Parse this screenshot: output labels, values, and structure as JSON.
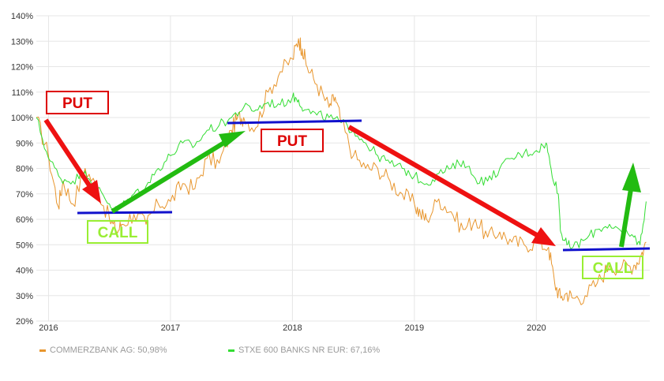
{
  "chart_data": {
    "type": "line",
    "title": "",
    "xlabel": "",
    "ylabel": "",
    "ylim": [
      20,
      140
    ],
    "y_ticks": [
      "140%",
      "130%",
      "120%",
      "110%",
      "100%",
      "90%",
      "80%",
      "70%",
      "60%",
      "50%",
      "40%",
      "30%",
      "20%"
    ],
    "x_ticks": [
      "2016",
      "2017",
      "2018",
      "2019",
      "2020"
    ],
    "x_range": [
      2015.9,
      2020.93
    ],
    "grid": true,
    "legend_position": "bottom-left",
    "series": [
      {
        "name": "COMMERZBANK AG: 50,98%",
        "color": "#e8962e",
        "x": [
          2015.9,
          2016.0,
          2016.08,
          2016.12,
          2016.2,
          2016.3,
          2016.4,
          2016.5,
          2016.56,
          2016.6,
          2016.7,
          2016.8,
          2016.9,
          2017.0,
          2017.1,
          2017.2,
          2017.3,
          2017.4,
          2017.5,
          2017.55,
          2017.6,
          2017.7,
          2017.8,
          2017.9,
          2018.0,
          2018.05,
          2018.08,
          2018.12,
          2018.2,
          2018.3,
          2018.35,
          2018.4,
          2018.5,
          2018.6,
          2018.7,
          2018.8,
          2018.9,
          2019.0,
          2019.05,
          2019.1,
          2019.2,
          2019.3,
          2019.4,
          2019.5,
          2019.6,
          2019.7,
          2019.8,
          2019.9,
          2020.0,
          2020.1,
          2020.15,
          2020.2,
          2020.25,
          2020.3,
          2020.4,
          2020.5,
          2020.6,
          2020.7,
          2020.8,
          2020.85,
          2020.9
        ],
        "values": [
          100,
          85,
          65,
          75,
          66,
          80,
          72,
          60,
          55,
          58,
          62,
          58,
          66,
          67,
          74,
          72,
          84,
          82,
          95,
          100,
          100,
          96,
          110,
          118,
          123,
          131,
          127,
          120,
          113,
          104,
          108,
          98,
          85,
          80,
          80,
          75,
          70,
          66,
          62,
          60,
          68,
          63,
          56,
          60,
          53,
          55,
          51,
          50,
          51,
          49,
          35,
          29,
          31,
          29,
          30,
          35,
          42,
          41,
          42,
          45,
          51
        ]
      },
      {
        "name": "STXE 600 BANKS NR EUR: 67,16%",
        "color": "#33dd33",
        "x": [
          2015.9,
          2016.0,
          2016.1,
          2016.2,
          2016.3,
          2016.4,
          2016.5,
          2016.56,
          2016.6,
          2016.7,
          2016.8,
          2016.9,
          2017.0,
          2017.1,
          2017.2,
          2017.3,
          2017.4,
          2017.5,
          2017.6,
          2017.7,
          2017.8,
          2017.9,
          2018.0,
          2018.05,
          2018.1,
          2018.2,
          2018.3,
          2018.4,
          2018.5,
          2018.6,
          2018.7,
          2018.8,
          2018.9,
          2019.0,
          2019.1,
          2019.2,
          2019.3,
          2019.4,
          2019.5,
          2019.6,
          2019.7,
          2019.8,
          2019.9,
          2020.0,
          2020.08,
          2020.12,
          2020.18,
          2020.2,
          2020.25,
          2020.3,
          2020.4,
          2020.5,
          2020.6,
          2020.7,
          2020.8,
          2020.85,
          2020.9
        ],
        "values": [
          100,
          84,
          76,
          75,
          79,
          72,
          66,
          63,
          65,
          70,
          73,
          80,
          85,
          90,
          89,
          95,
          97,
          100,
          104,
          103,
          106,
          105,
          108,
          107,
          103,
          101,
          100,
          98,
          95,
          90,
          85,
          82,
          80,
          77,
          74,
          78,
          80,
          83,
          76,
          75,
          80,
          84,
          86,
          87,
          90,
          80,
          70,
          55,
          50,
          49,
          52,
          56,
          58,
          55,
          53,
          50,
          67
        ]
      }
    ],
    "annotations": {
      "put_left": "PUT",
      "put_middle": "PUT",
      "call_left": "CALL",
      "call_right": "CALL"
    }
  },
  "colors": {
    "put_box": "#dd0000",
    "call_box": "#99ee33",
    "red_arrow": "#ee1111",
    "green_arrow": "#22bb11",
    "blue_line": "#1111cc",
    "grid": "#e6e6e6"
  }
}
